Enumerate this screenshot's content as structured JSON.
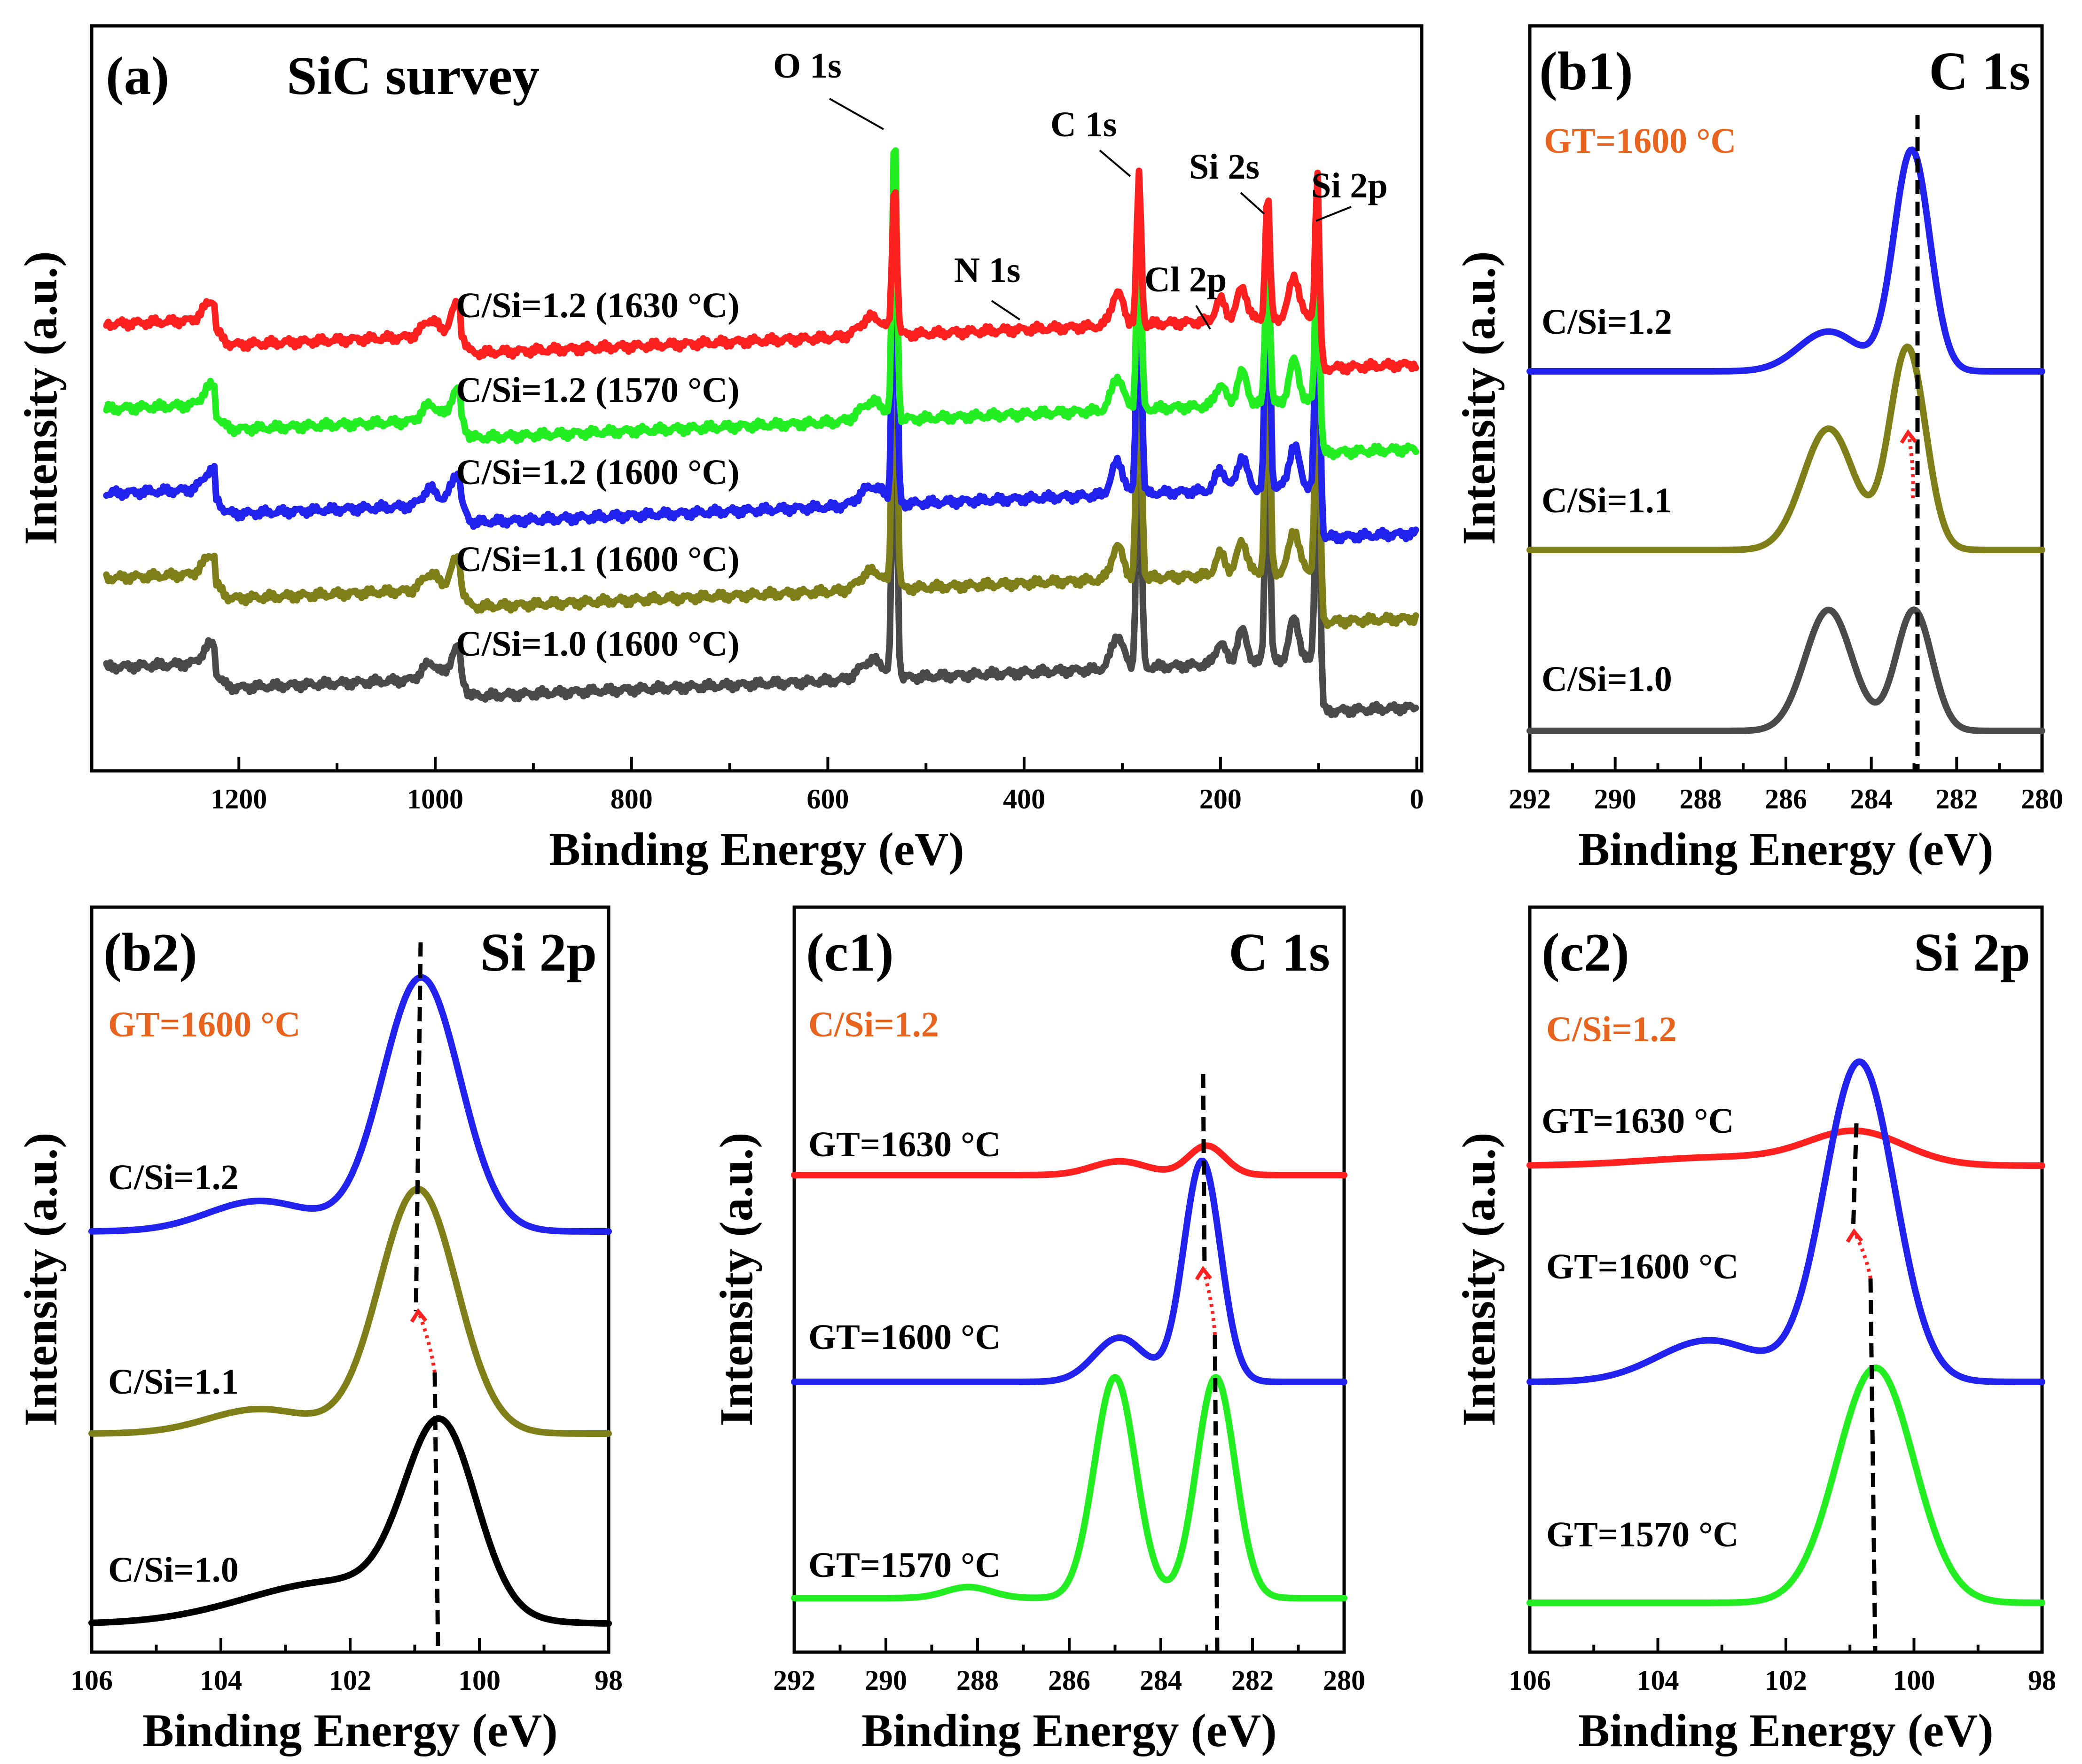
{
  "colors": {
    "red": "#ff2020",
    "green": "#22ee22",
    "blue": "#2222ee",
    "olive": "#7f7f1a",
    "gray": "#4a4a4a",
    "black": "#000000",
    "orange": "#e8641e"
  },
  "chart_data": [
    {
      "id": "a",
      "type": "line",
      "title": "(a)",
      "subtitle": "SiC survey",
      "xlabel": "Binding Energy (eV)",
      "ylabel": "Intensity (a.u.)",
      "xlim": [
        1350,
        -5
      ],
      "xticks": [
        1200,
        1000,
        800,
        600,
        400,
        200,
        0
      ],
      "peak_labels": [
        {
          "text": "O 1s",
          "x": 532
        },
        {
          "text": "C 1s",
          "x": 283
        },
        {
          "text": "N 1s",
          "x": 398
        },
        {
          "text": "Cl 2p",
          "x": 200
        },
        {
          "text": "Si 2s",
          "x": 152
        },
        {
          "text": "Si 2p",
          "x": 101
        }
      ],
      "series": [
        {
          "name": "C/Si=1.2 (1630 °C)",
          "color": "#ff2020",
          "offset": 4.0
        },
        {
          "name": "C/Si=1.2 (1570 °C)",
          "color": "#22ee22",
          "offset": 3.0
        },
        {
          "name": "C/Si=1.2 (1600 °C)",
          "color": "#2222ee",
          "offset": 2.0
        },
        {
          "name": "C/Si=1.1 (1600 °C)",
          "color": "#7f7f1a",
          "offset": 1.0
        },
        {
          "name": "C/Si=1.0 (1600 °C)",
          "color": "#4a4a4a",
          "offset": 0.0
        }
      ]
    },
    {
      "id": "b1",
      "type": "line",
      "title": "(b1)",
      "region": "C 1s",
      "condition": "GT=1600 °C",
      "xlabel": "Binding Energy (eV)",
      "ylabel": "Intensity (a.u.)",
      "xlim": [
        292,
        280
      ],
      "xticks": [
        292,
        290,
        288,
        286,
        284,
        282,
        280
      ],
      "reference_peak": 283.0,
      "series": [
        {
          "name": "C/Si=1.2",
          "color": "#2222ee",
          "peaks": [
            [
              283.05,
              1.0,
              0.42
            ],
            [
              285.0,
              0.18,
              0.7
            ]
          ]
        },
        {
          "name": "C/Si=1.1",
          "color": "#7f7f1a",
          "peaks": [
            [
              283.15,
              1.0,
              0.42
            ],
            [
              285.0,
              0.6,
              0.6
            ]
          ]
        },
        {
          "name": "C/Si=1.0",
          "color": "#4a4a4a",
          "peaks": [
            [
              283.0,
              0.78,
              0.42
            ],
            [
              285.0,
              0.78,
              0.55
            ]
          ]
        }
      ]
    },
    {
      "id": "b2",
      "type": "line",
      "title": "(b2)",
      "region": "Si 2p",
      "condition": "GT=1600 °C",
      "xlabel": "Binding Energy (eV)",
      "ylabel": "Intensity (a.u.)",
      "xlim": [
        106,
        98
      ],
      "xticks": [
        106,
        104,
        102,
        100,
        98
      ],
      "series": [
        {
          "name": "C/Si=1.2",
          "color": "#2222ee",
          "peaks": [
            [
              100.9,
              1.0,
              0.6
            ],
            [
              103.4,
              0.12,
              0.8
            ]
          ]
        },
        {
          "name": "C/Si=1.1",
          "color": "#7f7f1a",
          "peaks": [
            [
              100.95,
              1.0,
              0.6
            ],
            [
              103.4,
              0.1,
              0.8
            ]
          ]
        },
        {
          "name": "C/Si=1.0",
          "color": "#000000",
          "peaks": [
            [
              100.6,
              0.95,
              0.55
            ],
            [
              102.2,
              0.22,
              1.4
            ]
          ]
        }
      ]
    },
    {
      "id": "c1",
      "type": "line",
      "title": "(c1)",
      "region": "C 1s",
      "condition": "C/Si=1.2",
      "xlabel": "Binding Energy (eV)",
      "ylabel": "Intensity (a.u.)",
      "xlim": [
        292,
        280
      ],
      "xticks": [
        292,
        290,
        288,
        286,
        284,
        282,
        280
      ],
      "series": [
        {
          "name": "GT=1630 °C",
          "color": "#ff2020",
          "peaks": [
            [
              283.0,
              0.32,
              0.4
            ],
            [
              284.9,
              0.15,
              0.6
            ]
          ]
        },
        {
          "name": "GT=1600 °C",
          "color": "#2222ee",
          "peaks": [
            [
              283.1,
              1.0,
              0.4
            ],
            [
              284.9,
              0.2,
              0.55
            ]
          ]
        },
        {
          "name": "GT=1570 °C",
          "color": "#22ee22",
          "peaks": [
            [
              282.8,
              1.0,
              0.42
            ],
            [
              285.0,
              1.0,
              0.45
            ],
            [
              288.2,
              0.05,
              0.5
            ]
          ]
        }
      ]
    },
    {
      "id": "c2",
      "type": "line",
      "title": "(c2)",
      "region": "Si 2p",
      "condition": "C/Si=1.2",
      "xlabel": "Binding Energy (eV)",
      "ylabel": "Intensity (a.u.)",
      "xlim": [
        106,
        98
      ],
      "xticks": [
        106,
        104,
        102,
        100,
        98
      ],
      "series": [
        {
          "name": "GT=1630 °C",
          "color": "#ff2020",
          "peaks": [
            [
              100.9,
              0.32,
              0.75
            ],
            [
              103.0,
              0.08,
              1.2
            ]
          ]
        },
        {
          "name": "GT=1600 °C",
          "color": "#2222ee",
          "peaks": [
            [
              100.85,
              1.0,
              0.55
            ],
            [
              103.2,
              0.13,
              0.8
            ]
          ]
        },
        {
          "name": "GT=1570 °C",
          "color": "#22ee22",
          "peaks": [
            [
              100.6,
              1.0,
              0.6
            ]
          ]
        }
      ]
    }
  ]
}
